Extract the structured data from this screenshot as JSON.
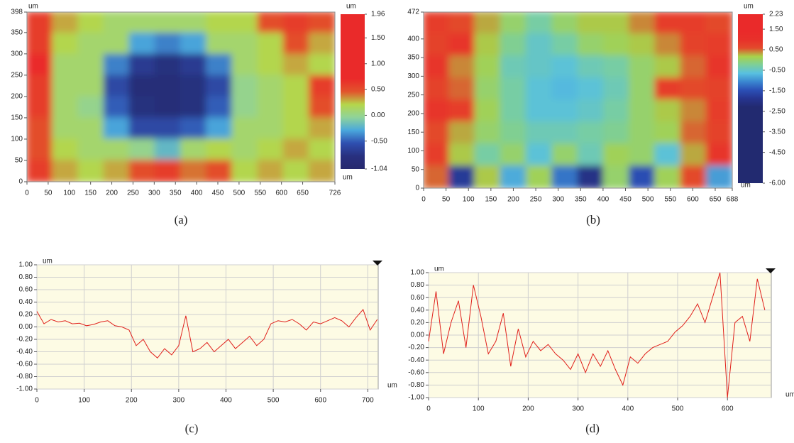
{
  "chart_data": [
    {
      "type": "heatmap",
      "caption": "(a)",
      "xlabel": "um",
      "ylabel": "um",
      "zlabel": "um",
      "xlim": [
        0,
        726
      ],
      "xticks": [
        0,
        50,
        100,
        150,
        200,
        250,
        300,
        350,
        400,
        450,
        500,
        550,
        600,
        650,
        726
      ],
      "ylim": [
        0,
        398
      ],
      "yticks": [
        0,
        50,
        100,
        150,
        200,
        250,
        300,
        350,
        398
      ],
      "zlim": [
        -1.04,
        1.96
      ],
      "zticks": [
        {
          "value": 1.96,
          "label": "1.96"
        },
        {
          "value": 1.5,
          "label": "1.50"
        },
        {
          "value": 1,
          "label": "1.00"
        },
        {
          "value": 0.5,
          "label": "0.50"
        },
        {
          "value": 0,
          "label": "0.00"
        },
        {
          "value": -0.5,
          "label": "-0.50"
        },
        {
          "value": -1.04,
          "label": "-1.04"
        }
      ],
      "colorscale": [
        "#27296e",
        "#28307f",
        "#2f4fb0",
        "#4aa8dc",
        "#8fd39a",
        "#b5d64a",
        "#e2542c",
        "#ea2a2a",
        "#ea2a2a",
        "#ea2a2a",
        "#ea2a2a",
        "#ea2a2a",
        "#ea2a2a"
      ],
      "z": [
        [
          0.6,
          0.3,
          0.2,
          0.1,
          0.1,
          0.1,
          0.1,
          0.2,
          0.2,
          0.5,
          0.6,
          0.5
        ],
        [
          0.6,
          0.2,
          0.1,
          0.1,
          -0.3,
          -0.4,
          -0.3,
          0.1,
          0.1,
          0.2,
          0.5,
          0.3
        ],
        [
          0.7,
          0.1,
          0.1,
          -0.4,
          -0.7,
          -0.8,
          -0.7,
          -0.4,
          0.1,
          0.2,
          0.3,
          0.2
        ],
        [
          0.6,
          0.1,
          0.1,
          -0.6,
          -0.9,
          -0.9,
          -0.8,
          -0.6,
          0.0,
          0.1,
          0.2,
          0.6
        ],
        [
          0.6,
          0.1,
          0.0,
          -0.5,
          -0.8,
          -0.9,
          -0.8,
          -0.5,
          0.0,
          0.1,
          0.2,
          0.5
        ],
        [
          0.5,
          0.1,
          0.1,
          -0.3,
          -0.6,
          -0.6,
          -0.5,
          -0.3,
          0.1,
          0.1,
          0.2,
          0.3
        ],
        [
          0.5,
          0.2,
          0.1,
          0.1,
          0.0,
          -0.2,
          0.1,
          0.2,
          0.1,
          0.2,
          0.3,
          0.2
        ],
        [
          0.6,
          0.3,
          0.2,
          0.3,
          0.5,
          0.6,
          0.4,
          0.5,
          0.2,
          0.3,
          0.2,
          0.3
        ]
      ]
    },
    {
      "type": "heatmap",
      "caption": "(b)",
      "xlabel": "um",
      "zlabel": "um",
      "xlim": [
        0,
        688
      ],
      "xticks": [
        0,
        50,
        100,
        150,
        200,
        250,
        300,
        350,
        400,
        450,
        500,
        550,
        600,
        650,
        688
      ],
      "ylim": [
        0,
        472
      ],
      "yticks": [
        0,
        50,
        100,
        150,
        200,
        250,
        300,
        350,
        400,
        472
      ],
      "zlim": [
        -6,
        2.23
      ],
      "zticks": [
        {
          "value": 2.23,
          "label": "2.23"
        },
        {
          "value": 1.5,
          "label": "1.50"
        },
        {
          "value": 0.5,
          "label": "0.50"
        },
        {
          "value": -0.5,
          "label": "-0.50"
        },
        {
          "value": -1.5,
          "label": "-1.50"
        },
        {
          "value": -2.5,
          "label": "-2.50"
        },
        {
          "value": -3.5,
          "label": "-3.50"
        },
        {
          "value": -4.5,
          "label": "-4.50"
        },
        {
          "value": -6,
          "label": "-6.00"
        }
      ],
      "colorscale": [
        "#222a70",
        "#222a70",
        "#222a70",
        "#222a70",
        "#222a70",
        "#222a70",
        "#222a70",
        "#222a70",
        "#222a70",
        "#222a70",
        "#26348f",
        "#2b4fb5",
        "#3a86d0",
        "#58c0e0",
        "#7ccf9a",
        "#a8d24a",
        "#e34a2c",
        "#e8302a",
        "#ea2a2a",
        "#ea2a2a",
        "#ea2a2a"
      ],
      "z": [
        [
          0.8,
          0.6,
          0.3,
          0.0,
          -0.3,
          0.0,
          0.2,
          0.2,
          0.4,
          0.8,
          0.8,
          0.6
        ],
        [
          0.7,
          0.9,
          0.2,
          -0.2,
          -0.5,
          -0.3,
          0.0,
          0.1,
          0.2,
          0.4,
          0.7,
          0.8
        ],
        [
          0.9,
          0.4,
          0.1,
          -0.4,
          -0.5,
          -0.6,
          -0.4,
          -0.3,
          0.0,
          0.2,
          0.5,
          0.9
        ],
        [
          0.7,
          0.5,
          0.0,
          -0.3,
          -0.6,
          -0.7,
          -0.6,
          -0.4,
          0.0,
          0.8,
          0.6,
          0.7
        ],
        [
          0.9,
          0.8,
          0.1,
          -0.3,
          -0.6,
          -0.6,
          -0.5,
          -0.3,
          0.0,
          0.2,
          0.4,
          0.8
        ],
        [
          0.6,
          0.3,
          0.0,
          -0.2,
          -0.4,
          -0.4,
          -0.3,
          -0.2,
          0.0,
          0.1,
          0.5,
          0.7
        ],
        [
          0.8,
          0.2,
          -0.3,
          0.0,
          -0.6,
          0.0,
          -0.4,
          0.1,
          0.0,
          -0.6,
          0.3,
          0.9
        ],
        [
          0.5,
          -1.8,
          0.2,
          -0.8,
          0.1,
          -1.2,
          -2.0,
          0.0,
          -1.5,
          0.1,
          0.6,
          -0.9
        ]
      ]
    },
    {
      "type": "line",
      "caption": "(c)",
      "xlabel": "um",
      "ylabel": "um",
      "color": "#e0201b",
      "grid": true,
      "xlim": [
        0,
        722
      ],
      "xticks": [
        0,
        100,
        200,
        300,
        400,
        500,
        600,
        700
      ],
      "ylim": [
        -1,
        1
      ],
      "yticks": [
        {
          "value": 1,
          "label": "1.00"
        },
        {
          "value": 0.8,
          "label": "0.80"
        },
        {
          "value": 0.6,
          "label": "0.60"
        },
        {
          "value": 0.4,
          "label": "0.40"
        },
        {
          "value": 0.2,
          "label": "0.20"
        },
        {
          "value": 0,
          "label": "0.00"
        },
        {
          "value": -0.2,
          "label": "-0.20"
        },
        {
          "value": -0.4,
          "label": "-0.40"
        },
        {
          "value": -0.6,
          "label": "-0.60"
        },
        {
          "value": -0.8,
          "label": "-0.80"
        },
        {
          "value": -1,
          "label": "-1.00"
        }
      ],
      "x": [
        0,
        15,
        30,
        45,
        60,
        75,
        90,
        105,
        120,
        135,
        150,
        165,
        180,
        195,
        210,
        225,
        240,
        255,
        270,
        285,
        300,
        315,
        330,
        345,
        360,
        375,
        390,
        405,
        420,
        435,
        450,
        465,
        480,
        495,
        510,
        525,
        540,
        555,
        570,
        585,
        600,
        615,
        630,
        645,
        660,
        675,
        690,
        705,
        720
      ],
      "values": [
        0.25,
        0.05,
        0.12,
        0.08,
        0.1,
        0.05,
        0.06,
        0.02,
        0.04,
        0.08,
        0.1,
        0.02,
        0.0,
        -0.05,
        -0.3,
        -0.2,
        -0.4,
        -0.5,
        -0.35,
        -0.45,
        -0.3,
        0.18,
        -0.4,
        -0.35,
        -0.25,
        -0.4,
        -0.3,
        -0.2,
        -0.35,
        -0.25,
        -0.15,
        -0.3,
        -0.2,
        0.05,
        0.1,
        0.08,
        0.12,
        0.05,
        -0.05,
        0.08,
        0.05,
        0.1,
        0.15,
        0.1,
        0.0,
        0.15,
        0.28,
        -0.05,
        0.12
      ]
    },
    {
      "type": "line",
      "caption": "(d)",
      "xlabel": "um",
      "ylabel": "um",
      "color": "#e0201b",
      "grid": true,
      "xlim": [
        0,
        688
      ],
      "xticks": [
        0,
        100,
        200,
        300,
        400,
        500,
        600
      ],
      "ylim": [
        -1,
        1
      ],
      "yticks": [
        {
          "value": 1,
          "label": "1.00"
        },
        {
          "value": 0.8,
          "label": "0.80"
        },
        {
          "value": 0.6,
          "label": "0.60"
        },
        {
          "value": 0.4,
          "label": "0.40"
        },
        {
          "value": 0.2,
          "label": "0.20"
        },
        {
          "value": 0,
          "label": "0.00"
        },
        {
          "value": -0.2,
          "label": "-0.20"
        },
        {
          "value": -0.4,
          "label": "-0.40"
        },
        {
          "value": -0.6,
          "label": "-0.60"
        },
        {
          "value": -0.8,
          "label": "-0.80"
        },
        {
          "value": -1,
          "label": "-1.00"
        }
      ],
      "x": [
        0,
        15,
        30,
        45,
        60,
        75,
        90,
        105,
        120,
        135,
        150,
        165,
        180,
        195,
        210,
        225,
        240,
        255,
        270,
        285,
        300,
        315,
        330,
        345,
        360,
        375,
        390,
        405,
        420,
        435,
        450,
        465,
        480,
        495,
        510,
        525,
        540,
        555,
        570,
        585,
        600,
        615,
        630,
        645,
        660,
        675
      ],
      "values": [
        -0.1,
        0.7,
        -0.3,
        0.2,
        0.55,
        -0.2,
        0.8,
        0.3,
        -0.3,
        -0.1,
        0.35,
        -0.5,
        0.1,
        -0.35,
        -0.1,
        -0.25,
        -0.15,
        -0.3,
        -0.4,
        -0.55,
        -0.3,
        -0.6,
        -0.3,
        -0.5,
        -0.25,
        -0.55,
        -0.8,
        -0.35,
        -0.45,
        -0.3,
        -0.2,
        -0.15,
        -0.1,
        0.05,
        0.15,
        0.3,
        0.5,
        0.2,
        0.6,
        1.0,
        -1.0,
        0.2,
        0.3,
        -0.1,
        0.9,
        0.4
      ]
    }
  ]
}
